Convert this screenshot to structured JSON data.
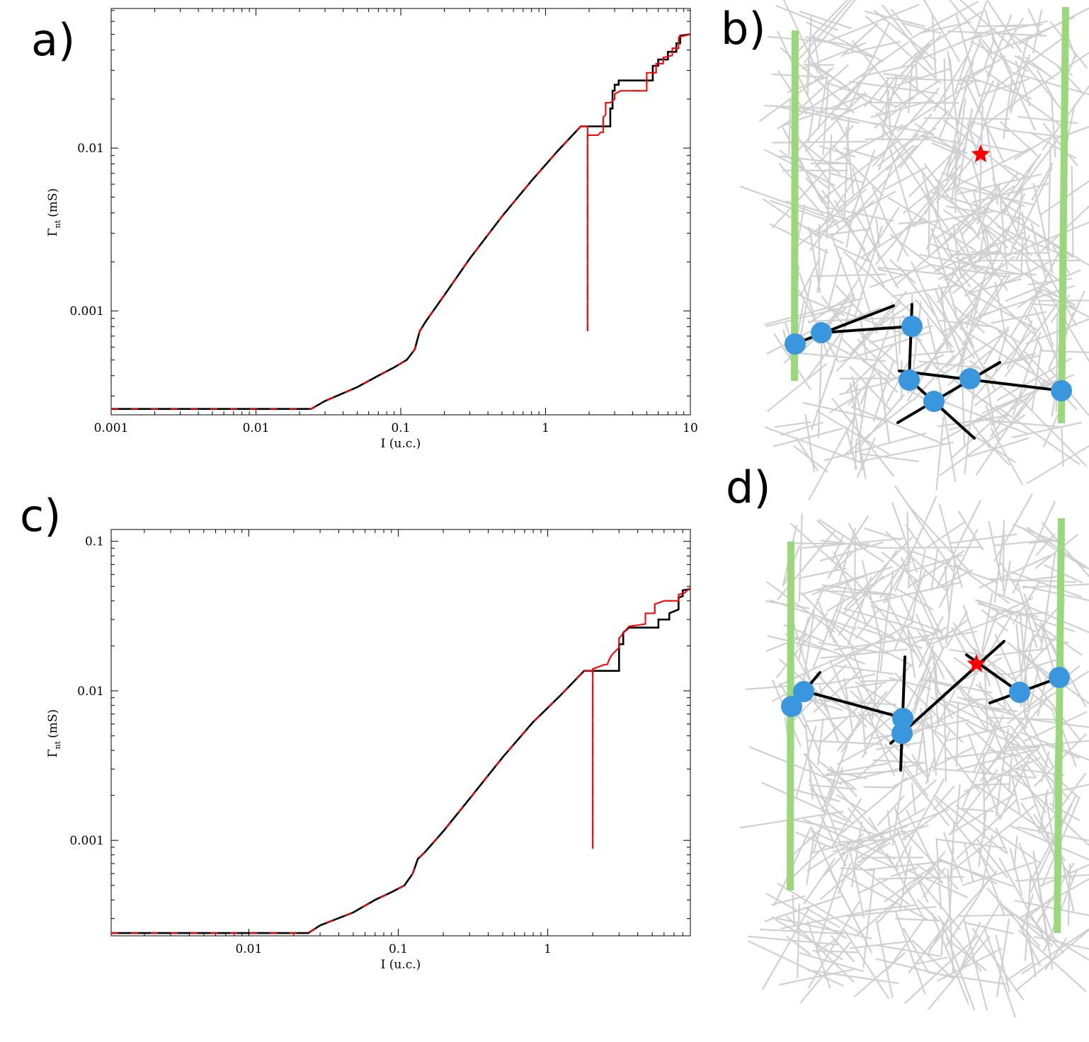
{
  "panels": {
    "a": "a)",
    "b": "b)",
    "c": "c)",
    "d": "d)"
  },
  "chart_data": [
    {
      "id": "a",
      "type": "line",
      "xscale": "log",
      "yscale": "log",
      "xlim": [
        0.001,
        10
      ],
      "ylim": [
        0.00023,
        0.072
      ],
      "xticks": [
        {
          "value": 0.001,
          "label": "0.001"
        },
        {
          "value": 0.01,
          "label": "0.01"
        },
        {
          "value": 0.1,
          "label": "0.1"
        },
        {
          "value": 1,
          "label": "1"
        },
        {
          "value": 10,
          "label": "10"
        }
      ],
      "yticks": [
        {
          "value": 0.001,
          "label": "0.001"
        },
        {
          "value": 0.01,
          "label": "0.01"
        }
      ],
      "xlabel": "I (u.c.)",
      "ylabel_main": "Γ",
      "ylabel_sub": "nt",
      "ylabel_unit": "(mS)",
      "series": [
        {
          "color": "#000000",
          "points": [
            [
              0.001,
              0.00025
            ],
            [
              0.024,
              0.00025
            ],
            [
              0.03,
              0.00028
            ],
            [
              0.05,
              0.00034
            ],
            [
              0.07,
              0.0004
            ],
            [
              0.09,
              0.00045
            ],
            [
              0.11,
              0.0005
            ],
            [
              0.125,
              0.00058
            ],
            [
              0.135,
              0.00075
            ],
            [
              0.15,
              0.00087
            ],
            [
              0.2,
              0.00125
            ],
            [
              0.3,
              0.0021
            ],
            [
              0.5,
              0.0038
            ],
            [
              0.8,
              0.0063
            ],
            [
              1.2,
              0.0095
            ],
            [
              1.75,
              0.0136
            ],
            [
              2.8,
              0.0136
            ],
            [
              2.8,
              0.0175
            ],
            [
              2.9,
              0.0175
            ],
            [
              2.9,
              0.0225
            ],
            [
              3.0,
              0.0225
            ],
            [
              3.0,
              0.0245
            ],
            [
              3.2,
              0.0245
            ],
            [
              3.2,
              0.026
            ],
            [
              5.5,
              0.026
            ],
            [
              5.5,
              0.032
            ],
            [
              6.0,
              0.032
            ],
            [
              6.0,
              0.035
            ],
            [
              7.0,
              0.035
            ],
            [
              7.0,
              0.039
            ],
            [
              8.0,
              0.039
            ],
            [
              8.0,
              0.044
            ],
            [
              8.5,
              0.044
            ],
            [
              8.5,
              0.049
            ],
            [
              10,
              0.05
            ]
          ]
        },
        {
          "color": "#ff0000",
          "points": [
            [
              0.001,
              0.00025
            ],
            [
              0.024,
              0.00025
            ],
            [
              0.03,
              0.00028
            ],
            [
              0.05,
              0.00034
            ],
            [
              0.07,
              0.0004
            ],
            [
              0.09,
              0.00045
            ],
            [
              0.11,
              0.0005
            ],
            [
              0.125,
              0.00058
            ],
            [
              0.135,
              0.00075
            ],
            [
              0.15,
              0.00087
            ],
            [
              0.2,
              0.00125
            ],
            [
              0.3,
              0.0021
            ],
            [
              0.5,
              0.0038
            ],
            [
              0.8,
              0.0063
            ],
            [
              1.2,
              0.0095
            ],
            [
              1.75,
              0.0136
            ],
            [
              1.95,
              0.0136
            ],
            [
              1.95,
              0.00075
            ],
            [
              1.95,
              0.012
            ],
            [
              2.3,
              0.012
            ],
            [
              2.4,
              0.0125
            ],
            [
              2.5,
              0.0125
            ],
            [
              2.5,
              0.0155
            ],
            [
              2.6,
              0.016
            ],
            [
              2.6,
              0.019
            ],
            [
              2.8,
              0.019
            ],
            [
              3.0,
              0.02
            ],
            [
              3.0,
              0.0215
            ],
            [
              3.3,
              0.0225
            ],
            [
              5.0,
              0.0225
            ],
            [
              5.0,
              0.029
            ],
            [
              5.8,
              0.029
            ],
            [
              5.8,
              0.033
            ],
            [
              6.5,
              0.033
            ],
            [
              6.5,
              0.036
            ],
            [
              7.5,
              0.037
            ],
            [
              7.5,
              0.041
            ],
            [
              8.3,
              0.041
            ],
            [
              8.3,
              0.048
            ],
            [
              10,
              0.05
            ]
          ]
        }
      ]
    },
    {
      "id": "c",
      "type": "line",
      "xscale": "log",
      "yscale": "log",
      "xlim": [
        0.0012,
        9.0
      ],
      "ylim": [
        0.00023,
        0.12
      ],
      "xticks": [
        {
          "value": 0.01,
          "label": "0.01"
        },
        {
          "value": 0.1,
          "label": "0.1"
        },
        {
          "value": 1,
          "label": "1"
        }
      ],
      "yticks": [
        {
          "value": 0.001,
          "label": "0.001"
        },
        {
          "value": 0.01,
          "label": "0.01"
        },
        {
          "value": 0.1,
          "label": "0.1"
        }
      ],
      "xlabel": "I (u.c.)",
      "ylabel_main": "Γ",
      "ylabel_sub": "nt",
      "ylabel_unit": "(mS)",
      "series": [
        {
          "color": "#000000",
          "points": [
            [
              0.0012,
              0.00024
            ],
            [
              0.025,
              0.00024
            ],
            [
              0.03,
              0.00027
            ],
            [
              0.05,
              0.00033
            ],
            [
              0.07,
              0.0004
            ],
            [
              0.09,
              0.00045
            ],
            [
              0.11,
              0.0005
            ],
            [
              0.125,
              0.0006
            ],
            [
              0.135,
              0.00075
            ],
            [
              0.15,
              0.00083
            ],
            [
              0.2,
              0.00115
            ],
            [
              0.3,
              0.0019
            ],
            [
              0.5,
              0.0036
            ],
            [
              0.8,
              0.0062
            ],
            [
              1.2,
              0.0092
            ],
            [
              1.75,
              0.0136
            ],
            [
              3.0,
              0.0136
            ],
            [
              3.0,
              0.0205
            ],
            [
              3.2,
              0.0205
            ],
            [
              3.2,
              0.0245
            ],
            [
              3.5,
              0.0265
            ],
            [
              5.5,
              0.0265
            ],
            [
              5.5,
              0.03
            ],
            [
              6.5,
              0.03
            ],
            [
              6.5,
              0.033
            ],
            [
              7.5,
              0.035
            ],
            [
              7.5,
              0.042
            ],
            [
              8.0,
              0.043
            ],
            [
              8.0,
              0.047
            ],
            [
              9.0,
              0.048
            ]
          ]
        },
        {
          "color": "#ff0000",
          "points": [
            [
              0.0012,
              0.00024
            ],
            [
              0.025,
              0.00024
            ],
            [
              0.03,
              0.00027
            ],
            [
              0.05,
              0.00033
            ],
            [
              0.07,
              0.0004
            ],
            [
              0.09,
              0.00045
            ],
            [
              0.11,
              0.0005
            ],
            [
              0.125,
              0.0006
            ],
            [
              0.135,
              0.00075
            ],
            [
              0.15,
              0.00083
            ],
            [
              0.2,
              0.00115
            ],
            [
              0.3,
              0.0019
            ],
            [
              0.5,
              0.0036
            ],
            [
              0.8,
              0.0062
            ],
            [
              1.2,
              0.0092
            ],
            [
              1.75,
              0.0136
            ],
            [
              2.0,
              0.0136
            ],
            [
              2.0,
              0.00088
            ],
            [
              2.0,
              0.014
            ],
            [
              2.4,
              0.015
            ],
            [
              2.5,
              0.015
            ],
            [
              2.6,
              0.0165
            ],
            [
              2.7,
              0.0175
            ],
            [
              3.0,
              0.0195
            ],
            [
              3.0,
              0.0225
            ],
            [
              3.5,
              0.027
            ],
            [
              4.5,
              0.028
            ],
            [
              4.5,
              0.033
            ],
            [
              5.2,
              0.033
            ],
            [
              5.2,
              0.038
            ],
            [
              6.0,
              0.04
            ],
            [
              7.5,
              0.04
            ],
            [
              7.5,
              0.044
            ],
            [
              8.2,
              0.045
            ],
            [
              9.0,
              0.049
            ]
          ]
        }
      ]
    }
  ],
  "networks": {
    "b": {
      "electrode_color": "#9bd87c",
      "tube_color": "#d0d0d0",
      "path_color": "#000000",
      "node_color": "#3b97dd",
      "marker_color": "#ff0000"
    },
    "d": {
      "electrode_color": "#9bd87c",
      "tube_color": "#d0d0d0",
      "path_color": "#000000",
      "node_color": "#3b97dd",
      "marker_color": "#ff0000"
    }
  }
}
